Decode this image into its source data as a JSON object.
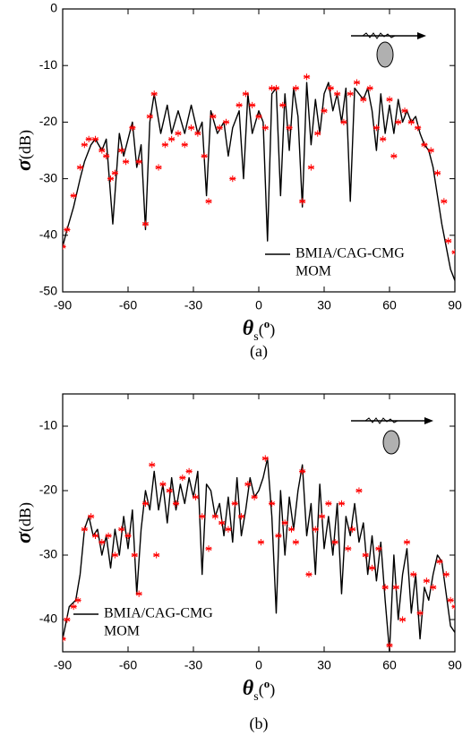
{
  "chart_data": [
    {
      "type": "line",
      "caption": "(a)",
      "ylabel": [
        "σ",
        "(dB)"
      ],
      "xlabel": [
        "θ",
        "s",
        "(",
        "o",
        ")"
      ],
      "xlim": [
        -90,
        90
      ],
      "xticks": [
        -90,
        -60,
        -30,
        0,
        30,
        60,
        90
      ],
      "ylim": [
        -50,
        0
      ],
      "yticks": [
        -50,
        -40,
        -30,
        -20,
        -10,
        0
      ],
      "legend": "lower right",
      "series": [
        {
          "name": "BMIA/CAG-CMG",
          "color": "#000000",
          "mode": "line",
          "x": [
            -90,
            -88,
            -85,
            -82,
            -80,
            -77,
            -75,
            -72,
            -70,
            -67,
            -64,
            -62,
            -58,
            -56,
            -54,
            -52,
            -50,
            -48,
            -45,
            -42,
            -40,
            -37,
            -34,
            -31,
            -28,
            -26,
            -24,
            -22,
            -19,
            -16,
            -14,
            -12,
            -9,
            -7,
            -5,
            -3,
            0,
            2,
            4,
            6,
            8,
            10,
            12,
            14,
            16,
            18,
            20,
            22,
            24,
            26,
            28,
            30,
            32,
            34,
            36,
            38,
            40,
            42,
            44,
            46,
            48,
            50,
            52,
            54,
            56,
            58,
            60,
            62,
            64,
            66,
            68,
            70,
            72,
            74,
            76,
            78,
            80,
            82,
            84,
            86,
            88,
            90
          ],
          "values": [
            -42,
            -39,
            -35,
            -30,
            -27,
            -24,
            -23,
            -25,
            -23,
            -38,
            -22,
            -26,
            -20,
            -28,
            -24,
            -39,
            -20,
            -15,
            -22,
            -17,
            -22,
            -18,
            -22,
            -17,
            -22,
            -20,
            -33,
            -18,
            -22,
            -20,
            -26,
            -21,
            -18,
            -30,
            -15,
            -22,
            -18,
            -20,
            -41,
            -15,
            -14,
            -33,
            -15,
            -25,
            -14,
            -19,
            -35,
            -13,
            -24,
            -16,
            -22,
            -15,
            -13,
            -18,
            -15,
            -20,
            -14,
            -34,
            -14,
            -15,
            -16,
            -14,
            -18,
            -25,
            -15,
            -22,
            -17,
            -22,
            -16,
            -20,
            -18,
            -20,
            -19,
            -22,
            -24,
            -25,
            -28,
            -33,
            -38,
            -42,
            -46,
            -48
          ]
        },
        {
          "name": "MOM",
          "color": "#ff0000",
          "mode": "markers",
          "x": [
            -90,
            -88,
            -85,
            -82,
            -80,
            -78,
            -75,
            -72,
            -70,
            -68,
            -66,
            -63,
            -61,
            -58,
            -55,
            -52,
            -50,
            -48,
            -46,
            -43,
            -40,
            -37,
            -34,
            -31,
            -28,
            -25,
            -23,
            -21,
            -18,
            -15,
            -12,
            -9,
            -6,
            -3,
            0,
            3,
            6,
            8,
            11,
            14,
            17,
            20,
            22,
            24,
            27,
            30,
            33,
            36,
            39,
            42,
            45,
            48,
            51,
            54,
            57,
            60,
            62,
            64,
            67,
            70,
            73,
            76,
            79,
            82,
            85,
            87,
            90
          ],
          "values": [
            -42,
            -39,
            -33,
            -28,
            -24,
            -23,
            -23,
            -25,
            -26,
            -30,
            -29,
            -25,
            -27,
            -21,
            -27,
            -38,
            -19,
            -15,
            -28,
            -24,
            -23,
            -22,
            -24,
            -21,
            -22,
            -26,
            -34,
            -19,
            -21,
            -20,
            -30,
            -17,
            -15,
            -17,
            -19,
            -21,
            -14,
            -14,
            -17,
            -21,
            -14,
            -34,
            -12,
            -28,
            -22,
            -18,
            -14,
            -15,
            -20,
            -15,
            -13,
            -16,
            -14,
            -21,
            -23,
            -16,
            -26,
            -20,
            -18,
            -20,
            -21,
            -24,
            -25,
            -29,
            -34,
            -41,
            -43
          ]
        }
      ]
    },
    {
      "type": "line",
      "caption": "(b)",
      "ylabel": [
        "σ",
        "(dB)"
      ],
      "xlabel": [
        "θ",
        "s",
        "(",
        "o",
        ")"
      ],
      "xlim": [
        -90,
        90
      ],
      "xticks": [
        -90,
        -60,
        -30,
        0,
        30,
        60,
        90
      ],
      "ylim": [
        -45,
        -5
      ],
      "yticks": [
        -40,
        -30,
        -20,
        -10
      ],
      "legend": "lower left",
      "series": [
        {
          "name": "BMIA/CAG-CMG",
          "color": "#000000",
          "mode": "line",
          "x": [
            -90,
            -87,
            -84,
            -82,
            -80,
            -78,
            -76,
            -74,
            -72,
            -70,
            -68,
            -66,
            -64,
            -62,
            -60,
            -58,
            -56,
            -54,
            -52,
            -50,
            -48,
            -46,
            -44,
            -42,
            -40,
            -38,
            -36,
            -34,
            -32,
            -30,
            -28,
            -26,
            -24,
            -22,
            -20,
            -18,
            -16,
            -14,
            -12,
            -10,
            -8,
            -6,
            -4,
            -2,
            0,
            2,
            4,
            6,
            8,
            10,
            12,
            14,
            16,
            18,
            20,
            22,
            24,
            26,
            28,
            30,
            32,
            34,
            36,
            38,
            40,
            42,
            44,
            46,
            48,
            50,
            52,
            54,
            56,
            58,
            60,
            62,
            64,
            66,
            68,
            70,
            72,
            74,
            76,
            78,
            80,
            82,
            84,
            86,
            88,
            90
          ],
          "values": [
            -43,
            -38,
            -37,
            -33,
            -26,
            -24,
            -27,
            -26,
            -30,
            -27,
            -32,
            -26,
            -30,
            -24,
            -29,
            -23,
            -36,
            -26,
            -20,
            -23,
            -17,
            -23,
            -19,
            -25,
            -18,
            -23,
            -19,
            -22,
            -18,
            -21,
            -17,
            -33,
            -19,
            -20,
            -24,
            -22,
            -27,
            -21,
            -28,
            -18,
            -27,
            -23,
            -18,
            -21,
            -20,
            -18,
            -15,
            -24,
            -39,
            -20,
            -30,
            -21,
            -26,
            -20,
            -16,
            -27,
            -22,
            -33,
            -19,
            -29,
            -24,
            -30,
            -22,
            -36,
            -24,
            -27,
            -22,
            -28,
            -25,
            -33,
            -27,
            -34,
            -28,
            -37,
            -45,
            -30,
            -40,
            -33,
            -29,
            -39,
            -33,
            -43,
            -35,
            -37,
            -33,
            -30,
            -31,
            -36,
            -41,
            -42
          ]
        },
        {
          "name": "MOM",
          "color": "#ff0000",
          "mode": "markers",
          "x": [
            -90,
            -88,
            -85,
            -83,
            -80,
            -77,
            -75,
            -72,
            -69,
            -66,
            -63,
            -60,
            -57,
            -55,
            -52,
            -49,
            -47,
            -44,
            -41,
            -38,
            -35,
            -32,
            -29,
            -26,
            -23,
            -20,
            -17,
            -14,
            -11,
            -8,
            -5,
            -2,
            1,
            3,
            6,
            9,
            12,
            15,
            17,
            20,
            23,
            26,
            29,
            32,
            35,
            38,
            41,
            43,
            46,
            49,
            52,
            55,
            58,
            60,
            63,
            66,
            68,
            71,
            74,
            77,
            80,
            83,
            86,
            88,
            90
          ],
          "values": [
            -43,
            -40,
            -38,
            -37,
            -26,
            -24,
            -27,
            -28,
            -27,
            -30,
            -26,
            -27,
            -30,
            -36,
            -22,
            -16,
            -30,
            -19,
            -20,
            -22,
            -18,
            -17,
            -21,
            -24,
            -29,
            -24,
            -25,
            -26,
            -22,
            -24,
            -19,
            -21,
            -28,
            -15,
            -22,
            -27,
            -25,
            -26,
            -28,
            -17,
            -33,
            -26,
            -24,
            -22,
            -28,
            -22,
            -29,
            -26,
            -20,
            -30,
            -32,
            -29,
            -35,
            -44,
            -35,
            -40,
            -28,
            -33,
            -39,
            -34,
            -35,
            -31,
            -33,
            -37,
            -38
          ]
        }
      ]
    }
  ]
}
